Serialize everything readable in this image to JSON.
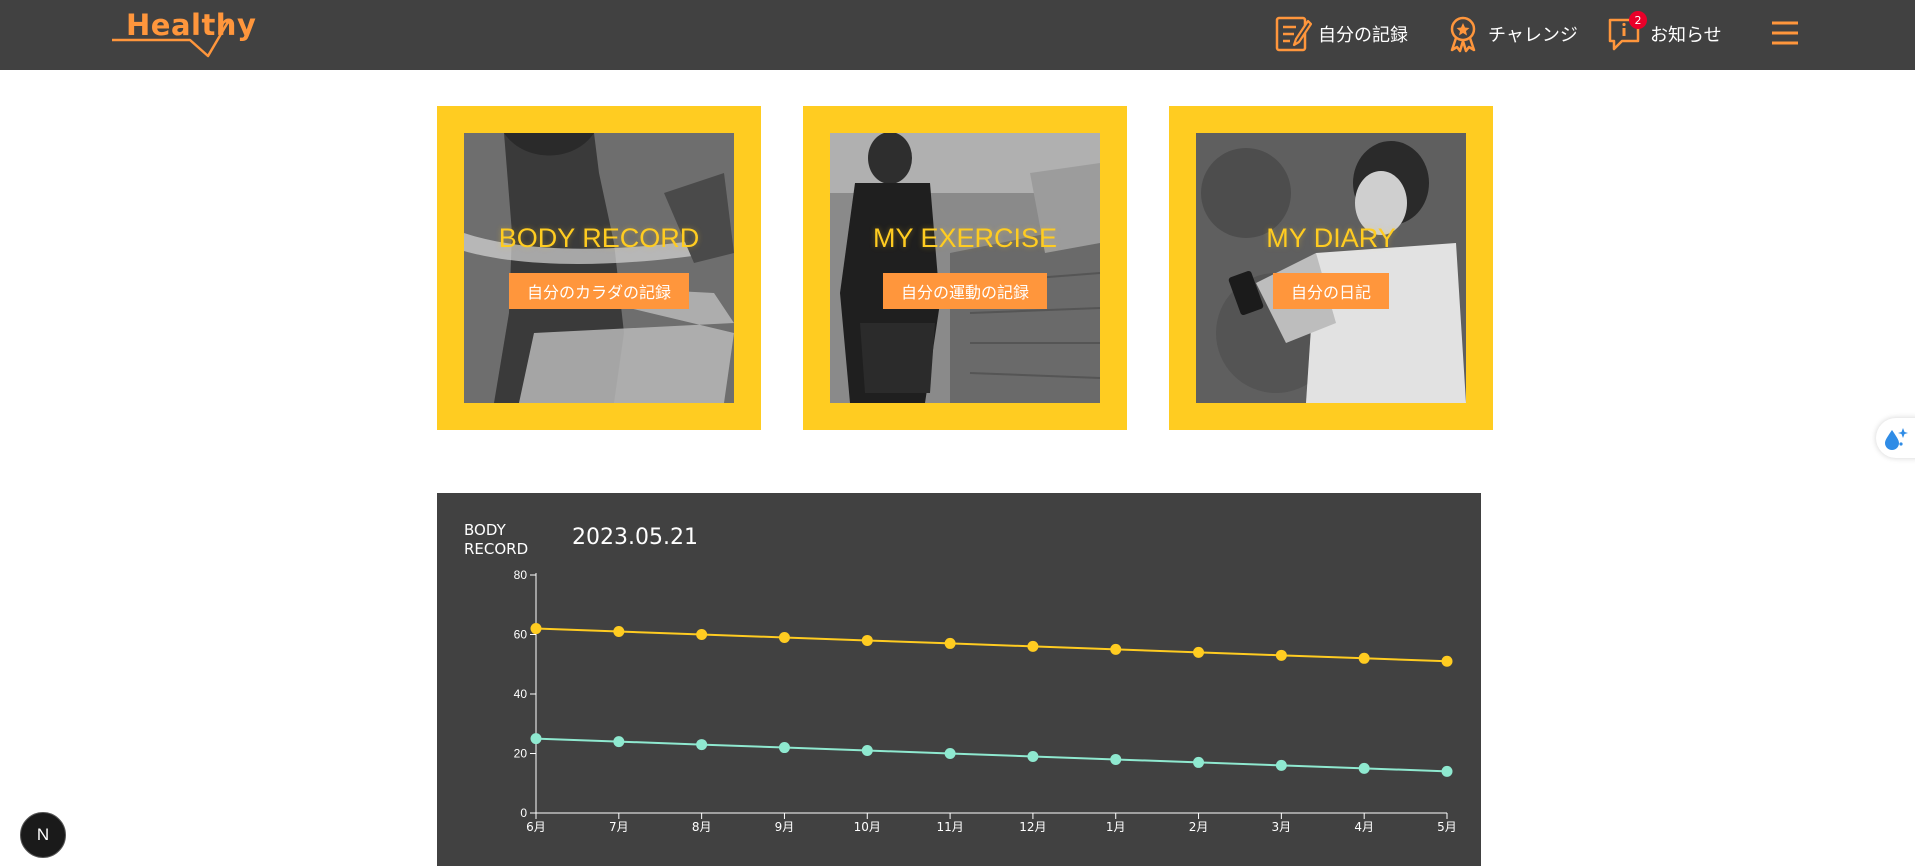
{
  "header": {
    "logo_text": "Healthy",
    "nav": [
      {
        "label": "自分の記録",
        "icon": "memo-icon"
      },
      {
        "label": "チャレンジ",
        "icon": "medal-icon"
      },
      {
        "label": "お知らせ",
        "icon": "info-icon",
        "badge": "2"
      }
    ],
    "menu_icon": "hamburger-menu-icon"
  },
  "cards": [
    {
      "title": "BODY RECORD",
      "subtitle": "自分のカラダの記録"
    },
    {
      "title": "MY EXERCISE",
      "subtitle": "自分の運動の記録"
    },
    {
      "title": "MY DIARY",
      "subtitle": "自分の日記"
    }
  ],
  "chart_panel": {
    "label": "BODY RECORD",
    "date": "2023.05.21"
  },
  "chart_data": {
    "type": "line",
    "x": [
      "6月",
      "7月",
      "8月",
      "9月",
      "10月",
      "11月",
      "12月",
      "1月",
      "2月",
      "3月",
      "4月",
      "5月"
    ],
    "series": [
      {
        "values": [
          62,
          61,
          60,
          59,
          58,
          57,
          56,
          55,
          54,
          53,
          52,
          51
        ],
        "color": "#ffcc21"
      },
      {
        "values": [
          25,
          24,
          23,
          22,
          21,
          20,
          19,
          18,
          17,
          16,
          15,
          14
        ],
        "color": "#8fe9d0"
      }
    ],
    "yticks": [
      0,
      20,
      40,
      60,
      80
    ],
    "ylim": [
      0,
      80
    ],
    "grid": false
  },
  "colors": {
    "primary": "#ffcc21",
    "accent": "#ff963c",
    "dark": "#414141",
    "secondary": "#8fe9d0"
  },
  "floating": {
    "next_badge": "N",
    "side_button_icon": "water-drop-sparkle-icon"
  }
}
